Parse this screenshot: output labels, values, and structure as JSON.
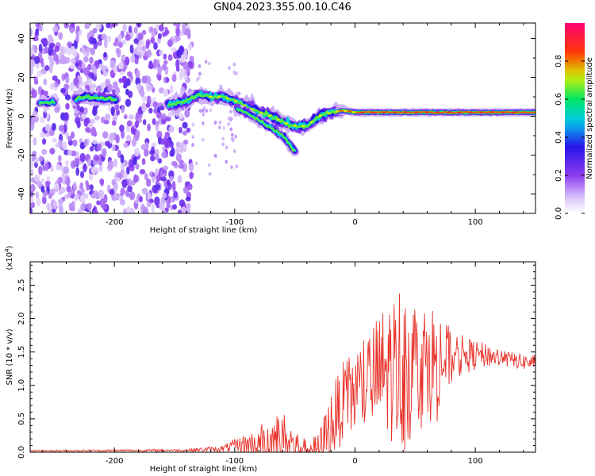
{
  "title": "GN04.2023.355.00.10.C46",
  "chart_data": [
    {
      "type": "heatmap",
      "title": "GN04.2023.355.00.10.C46",
      "xlabel": "Height of straight line (km)",
      "ylabel": "Frequency (Hz)",
      "xlim": [
        -270,
        150
      ],
      "ylim": [
        -50,
        48
      ],
      "x_ticks": [
        "-200",
        "-100",
        "0",
        "100"
      ],
      "y_ticks": [
        "-40",
        "-20",
        "0",
        "20",
        "40"
      ],
      "colorbar": {
        "label": "Normalized spectral amplitude",
        "range": [
          0,
          1
        ],
        "ticks": [
          "0.0",
          "0.2",
          "0.4",
          "0.6",
          "0.8"
        ],
        "colormap": "gist_rainbow (white → purple → blue → cyan → green → yellow → red → pink)"
      },
      "ridge": {
        "height_km": [
          -255,
          -230,
          -225,
          -210,
          -200,
          -150,
          -140,
          -130,
          -120,
          -110,
          -100,
          -90,
          -80,
          -70,
          -60,
          -50,
          -40,
          -30,
          -20,
          -10,
          0,
          20,
          40,
          60,
          80,
          100,
          120,
          150
        ],
        "frequency_hz": [
          7,
          9,
          10,
          9,
          9,
          6,
          8,
          11,
          10,
          10,
          8,
          5,
          2,
          0,
          -3,
          -5,
          -5,
          0,
          2,
          3,
          2,
          2,
          2,
          2,
          2,
          2,
          2,
          2
        ]
      },
      "secondary_branch": {
        "height_km": [
          -100,
          -90,
          -80,
          -70,
          -60,
          -55,
          -50
        ],
        "frequency_hz": [
          4,
          2,
          -2,
          -6,
          -10,
          -14,
          -18
        ]
      },
      "noise_region_km": [
        -270,
        -135
      ]
    },
    {
      "type": "line",
      "xlabel": "Height of straight line (km)",
      "ylabel": "SNR (10 * v/v)",
      "y_multiplier": "(x10^4)",
      "y_multiplier_base": "(x10",
      "y_multiplier_exp": "4",
      "y_multiplier_close": ")",
      "xlim": [
        -270,
        150
      ],
      "ylim": [
        0,
        2.85
      ],
      "x_ticks": [
        "-200",
        "-100",
        "0",
        "100"
      ],
      "y_ticks": [
        "0.0",
        "0.5",
        "1.0",
        "1.5",
        "2.0",
        "2.5"
      ],
      "series_color": "#e8332b",
      "envelope": {
        "x": [
          -270,
          -140,
          -110,
          -100,
          -80,
          -70,
          -60,
          -50,
          -40,
          -30,
          -20,
          -10,
          0,
          10,
          20,
          30,
          40,
          50,
          60,
          70,
          80,
          90,
          100,
          110,
          120,
          130,
          140,
          150
        ],
        "baseline": [
          0.02,
          0.03,
          0.05,
          0.1,
          0.12,
          0.15,
          0.18,
          0.1,
          0.05,
          0.05,
          0.4,
          0.75,
          0.9,
          1.05,
          1.15,
          1.25,
          1.3,
          1.3,
          1.35,
          1.35,
          1.4,
          1.45,
          1.45,
          1.45,
          1.42,
          1.38,
          1.35,
          1.35
        ],
        "amplitude": [
          0.01,
          0.02,
          0.05,
          0.1,
          0.25,
          0.45,
          0.45,
          0.25,
          0.12,
          0.25,
          0.55,
          0.6,
          0.7,
          0.75,
          0.95,
          1.1,
          1.35,
          1.05,
          0.9,
          0.9,
          0.4,
          0.3,
          0.22,
          0.18,
          0.15,
          0.12,
          0.12,
          0.12
        ]
      }
    }
  ]
}
